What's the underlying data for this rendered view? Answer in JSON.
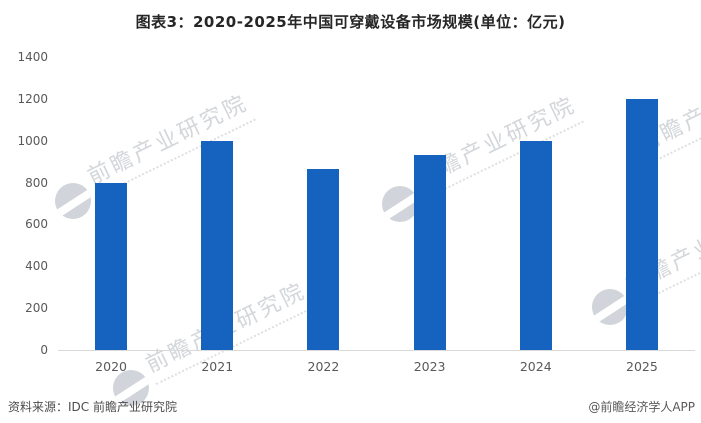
{
  "chart_data": {
    "type": "bar",
    "title": "图表3：2020-2025年中国可穿戴设备市场规模(单位：亿元)",
    "unit_label": "亿元",
    "categories": [
      "2020",
      "2021",
      "2022",
      "2023",
      "2024",
      "2025"
    ],
    "values": [
      800,
      1000,
      865,
      930,
      1000,
      1200
    ],
    "xlabel": "",
    "ylabel": "",
    "ylim": [
      0,
      1400
    ],
    "yticks": [
      0,
      200,
      400,
      600,
      800,
      1000,
      1200,
      1400
    ],
    "grid": false,
    "legend": false,
    "bar_color": "#1563be",
    "background": "#ffffff"
  },
  "footer": {
    "source_label": "资料来源：IDC 前瞻产业研究院",
    "credit_label": "@前瞻经济学人APP"
  },
  "watermark": {
    "text": "前瞻产业研究院",
    "logo": "qianzhan-swoosh-logo",
    "color": "#c9cdd4"
  },
  "colors": {
    "title_text": "#262626",
    "axis_text": "#595959",
    "axis_line": "#d9d9d9"
  }
}
